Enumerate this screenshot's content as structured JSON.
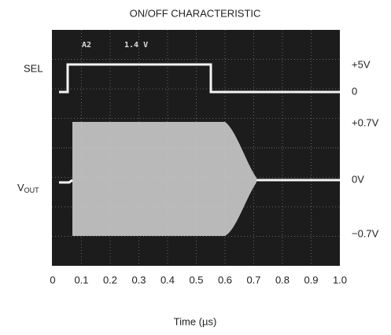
{
  "chart_data": {
    "type": "scope",
    "title": "ON/OFF CHARACTERISTIC",
    "xlabel": "Time (µs)",
    "xlim": [
      0,
      1
    ],
    "xticks": [
      0,
      0.1,
      0.2,
      0.3,
      0.4,
      0.5,
      0.6,
      0.7,
      0.8,
      0.9,
      {
        "value": 1,
        "label": "1.0"
      }
    ],
    "grid": true,
    "screen_text": [
      "A2",
      "1.4 V"
    ],
    "left_labels": [
      {
        "text": "SEL"
      },
      {
        "text": "V",
        "subscript": "OUT"
      }
    ],
    "right_labels": [
      "+5V",
      "0",
      "+0.7V",
      "0V",
      "−0.7V"
    ]
  }
}
